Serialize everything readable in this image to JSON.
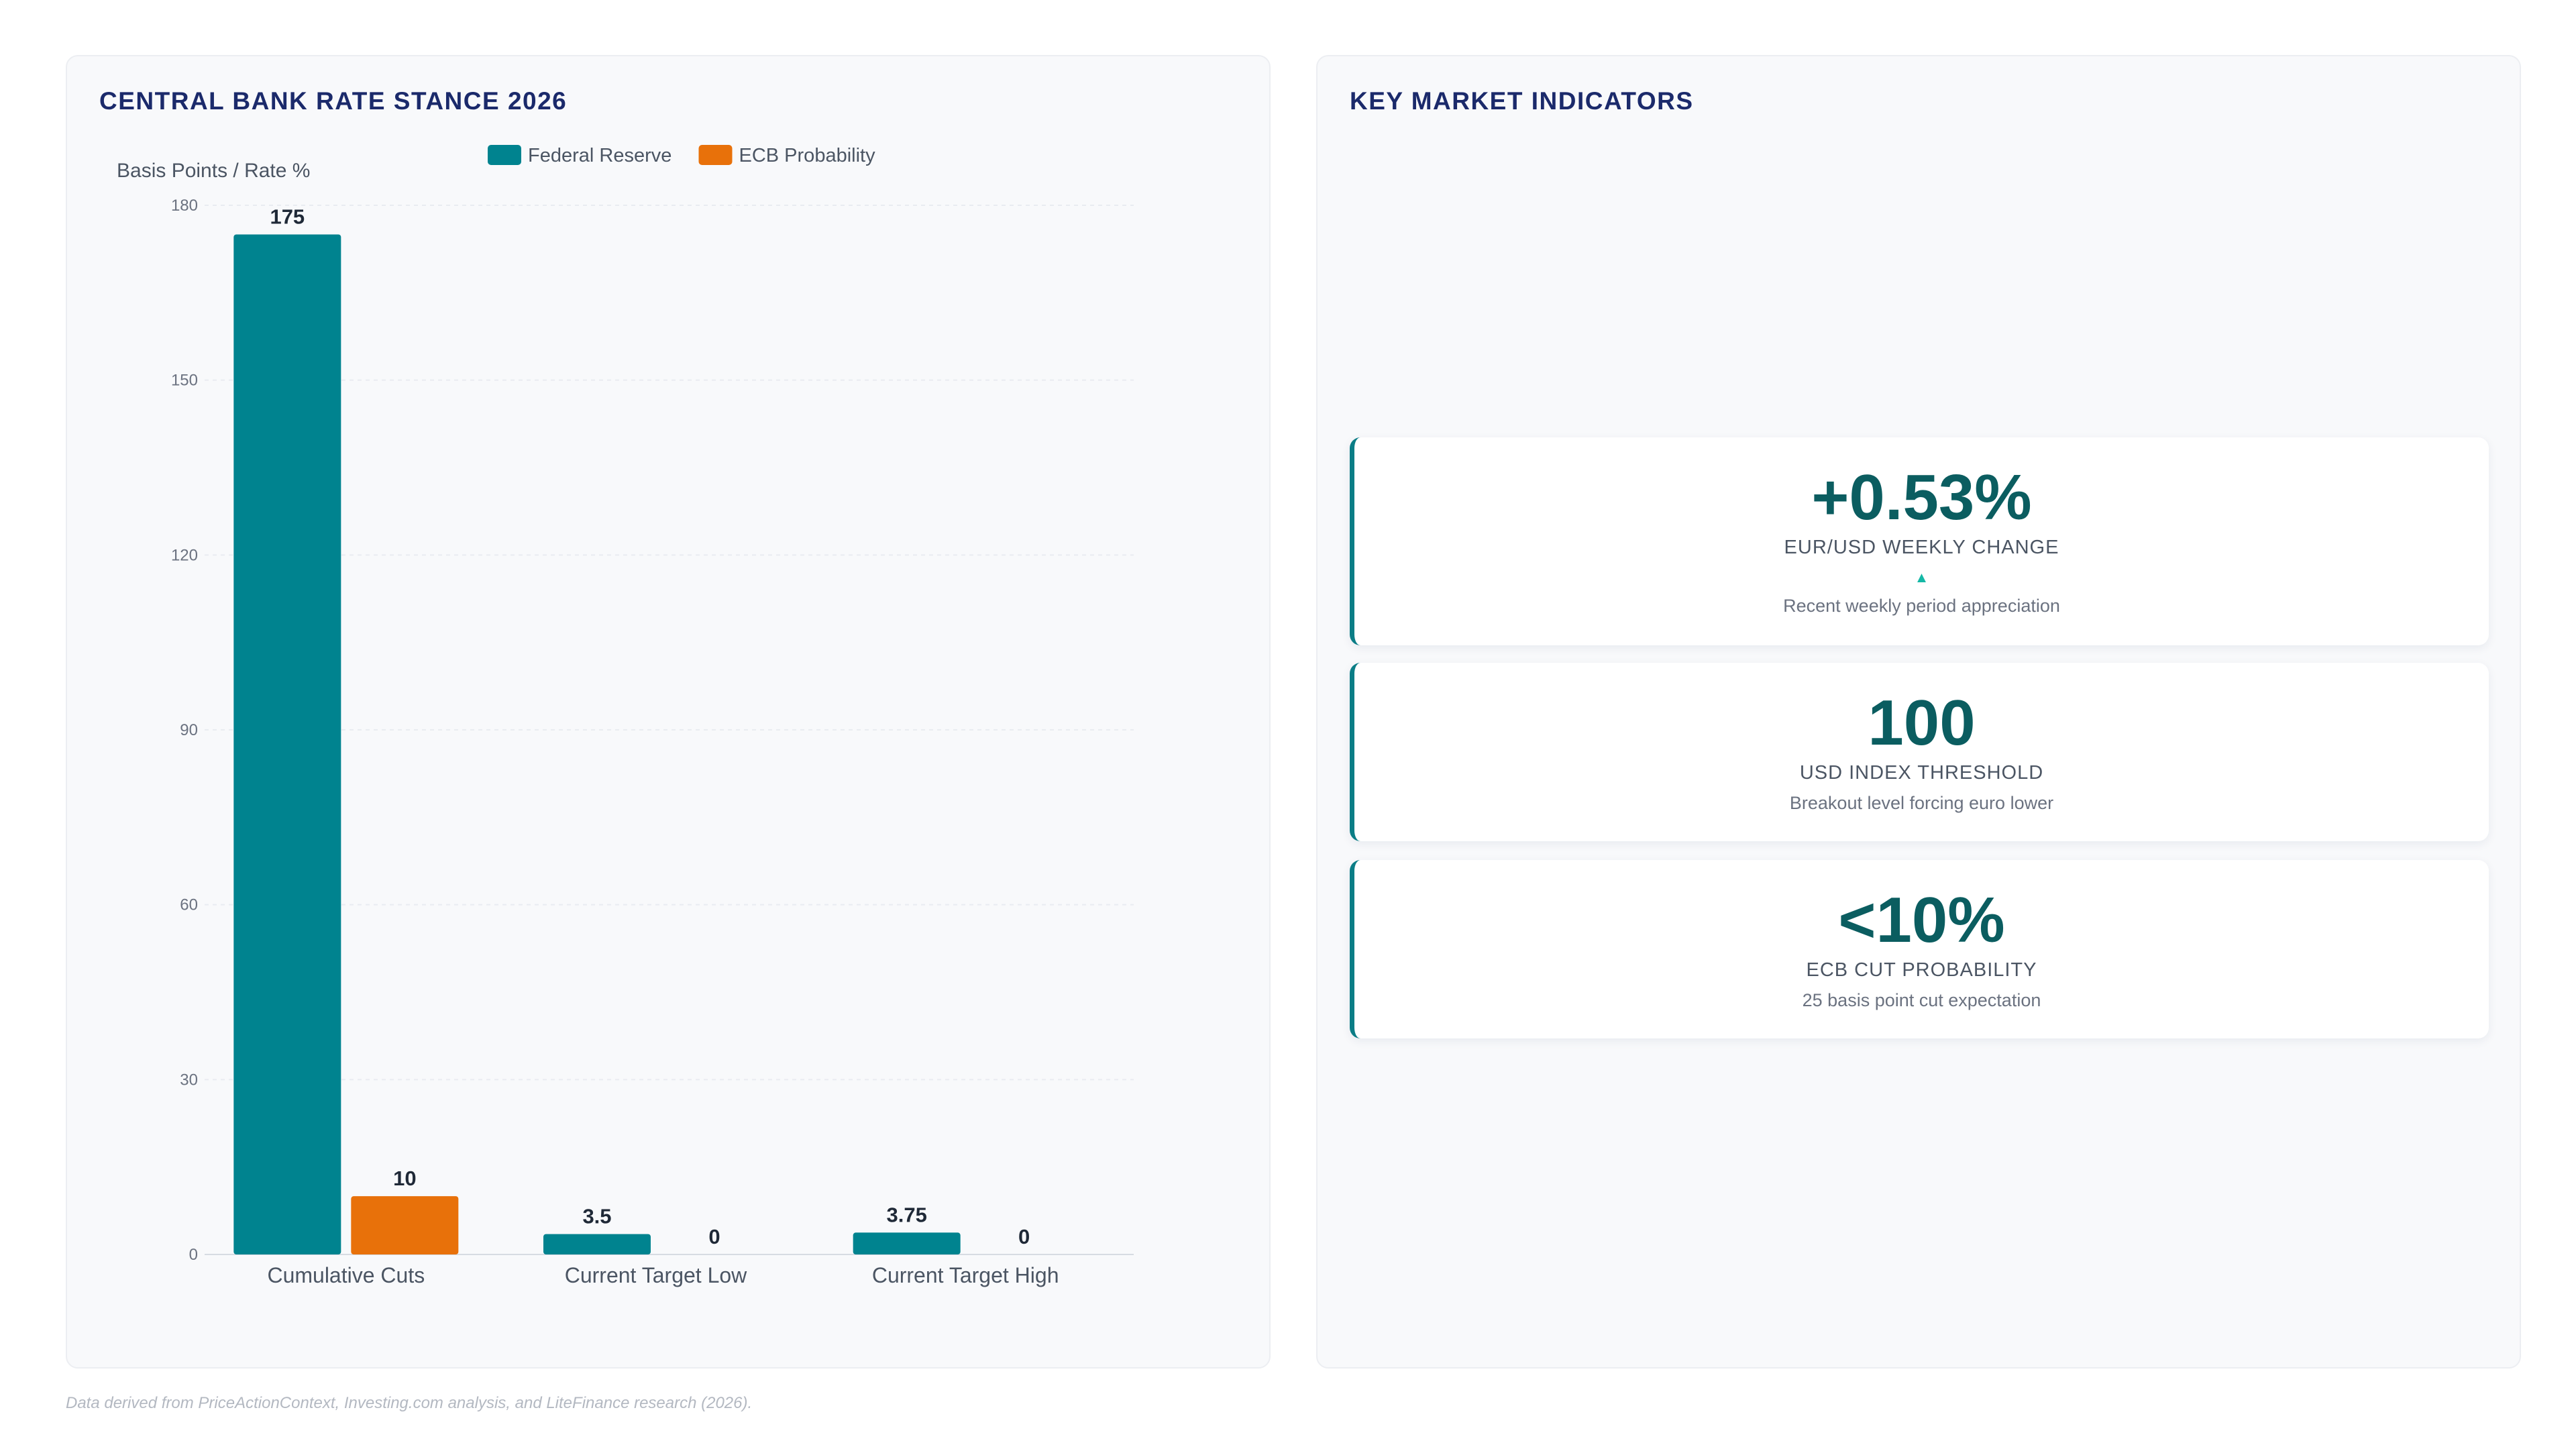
{
  "chart_panel": {
    "title": "CENTRAL BANK RATE STANCE 2026"
  },
  "chart_data": {
    "type": "bar",
    "categories": [
      "Cumulative Cuts",
      "Current Target Low",
      "Current Target High"
    ],
    "series": [
      {
        "name": "Federal Reserve",
        "color": "#00838f",
        "values": [
          175,
          3.5,
          3.75
        ]
      },
      {
        "name": "ECB Probability",
        "color": "#e8710a",
        "values": [
          10,
          0,
          0
        ]
      }
    ],
    "data_labels": [
      [
        "175",
        "3.5",
        "3.75"
      ],
      [
        "10",
        "0",
        "0"
      ]
    ],
    "ylabel": "Basis Points / Rate %",
    "xlabel": "",
    "ylim": [
      0,
      180
    ],
    "yticks": [
      0,
      30,
      60,
      90,
      120,
      150,
      180
    ],
    "grid": true,
    "legend_position": "top-center"
  },
  "kpi_panel": {
    "title": "KEY MARKET INDICATORS",
    "cards": [
      {
        "value": "+0.53%",
        "label": "EUR/USD WEEKLY CHANGE",
        "arrow": "▲",
        "sub": "Recent weekly period appreciation"
      },
      {
        "value": "100",
        "label": "USD INDEX THRESHOLD",
        "sub": "Breakout level forcing euro lower"
      },
      {
        "value": "<10%",
        "label": "ECB CUT PROBABILITY",
        "sub": "25 basis point cut expectation"
      }
    ]
  },
  "footer": {
    "note": "Data derived from PriceActionContext, Investing.com analysis, and LiteFinance research (2026)."
  },
  "colors": {
    "accent_teal": "#00838f",
    "accent_orange": "#e8710a",
    "title_navy": "#1b2a6b",
    "kpi_value": "#0b5d60",
    "up_arrow": "#14b8a6"
  }
}
